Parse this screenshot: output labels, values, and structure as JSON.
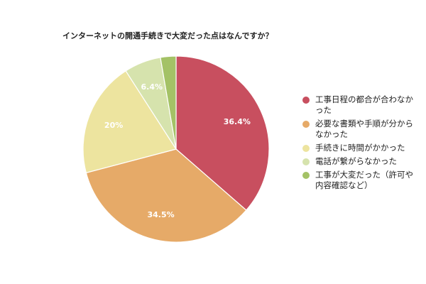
{
  "chart_data": {
    "type": "pie",
    "title": "インターネットの開通手続きで大変だった点はなんですか？",
    "slices": [
      {
        "label": "工事日程の都合が合わなか\nった",
        "value": 36.4,
        "display": "36.4%",
        "color": "#c84f5f"
      },
      {
        "label": "必要な書類や手順が分から\nなかった",
        "value": 34.5,
        "display": "34.5%",
        "color": "#e6aa68"
      },
      {
        "label": "手続きに時間がかかった",
        "value": 20,
        "display": "20%",
        "color": "#ede49f"
      },
      {
        "label": "電話が繋がらなかった",
        "value": 6.4,
        "display": "6.4%",
        "color": "#d6e3ad"
      },
      {
        "label": "工事が大変だった（許可や\n内容確認など）",
        "value": 2.7,
        "display": "",
        "color": "#a4c266"
      }
    ],
    "legend_position": "right"
  }
}
